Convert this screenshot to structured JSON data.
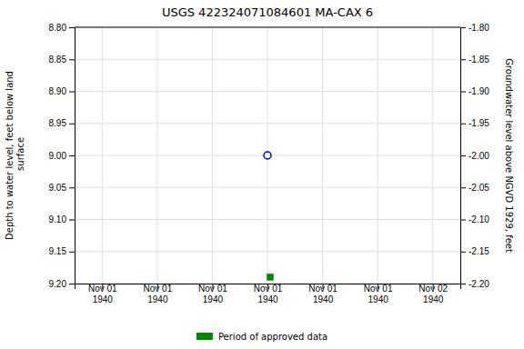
{
  "chart_data": {
    "type": "scatter",
    "title": "USGS 422324071084601 MA-CAX    6",
    "ylabel": "Depth to water level, feet below land\n surface",
    "y2label": "Groundwater level above NGVD 1929, feet",
    "categories": [
      "Nov 01\n1940",
      "Nov 01\n1940",
      "Nov 01\n1940",
      "Nov 01\n1940",
      "Nov 01\n1940",
      "Nov 01\n1940",
      "Nov 02\n1940"
    ],
    "series": [
      {
        "color": "#0000cc",
        "marker": "circle-open",
        "values": [
          null,
          null,
          null,
          9.0,
          null,
          null,
          null
        ]
      },
      {
        "name": "Period of approved data",
        "color": "#008800",
        "marker": "square",
        "values": [
          null,
          null,
          null,
          9.19,
          null,
          null,
          null
        ]
      }
    ],
    "ylim": [
      9.2,
      8.8
    ],
    "yticks": [
      {
        "value": 8.8,
        "label": "8.80"
      },
      8.85,
      {
        "value": 8.9,
        "label": "8.90"
      },
      8.95,
      {
        "value": 9.0,
        "label": "9.00"
      },
      9.05,
      {
        "value": 9.1,
        "label": "9.10"
      },
      9.15,
      {
        "value": 9.2,
        "label": "9.20"
      }
    ],
    "y2lim": [
      -2.2,
      -1.8
    ],
    "y2ticks": [
      {
        "value": -1.8,
        "label": "-1.80"
      },
      -1.85,
      {
        "value": -1.9,
        "label": "-1.90"
      },
      -1.95,
      {
        "value": -2.0,
        "label": "-2.00"
      },
      -2.05,
      {
        "value": -2.1,
        "label": "-2.10"
      },
      -2.15,
      {
        "value": -2.2,
        "label": "-2.20"
      }
    ],
    "grid": true,
    "legend": "bottom"
  }
}
